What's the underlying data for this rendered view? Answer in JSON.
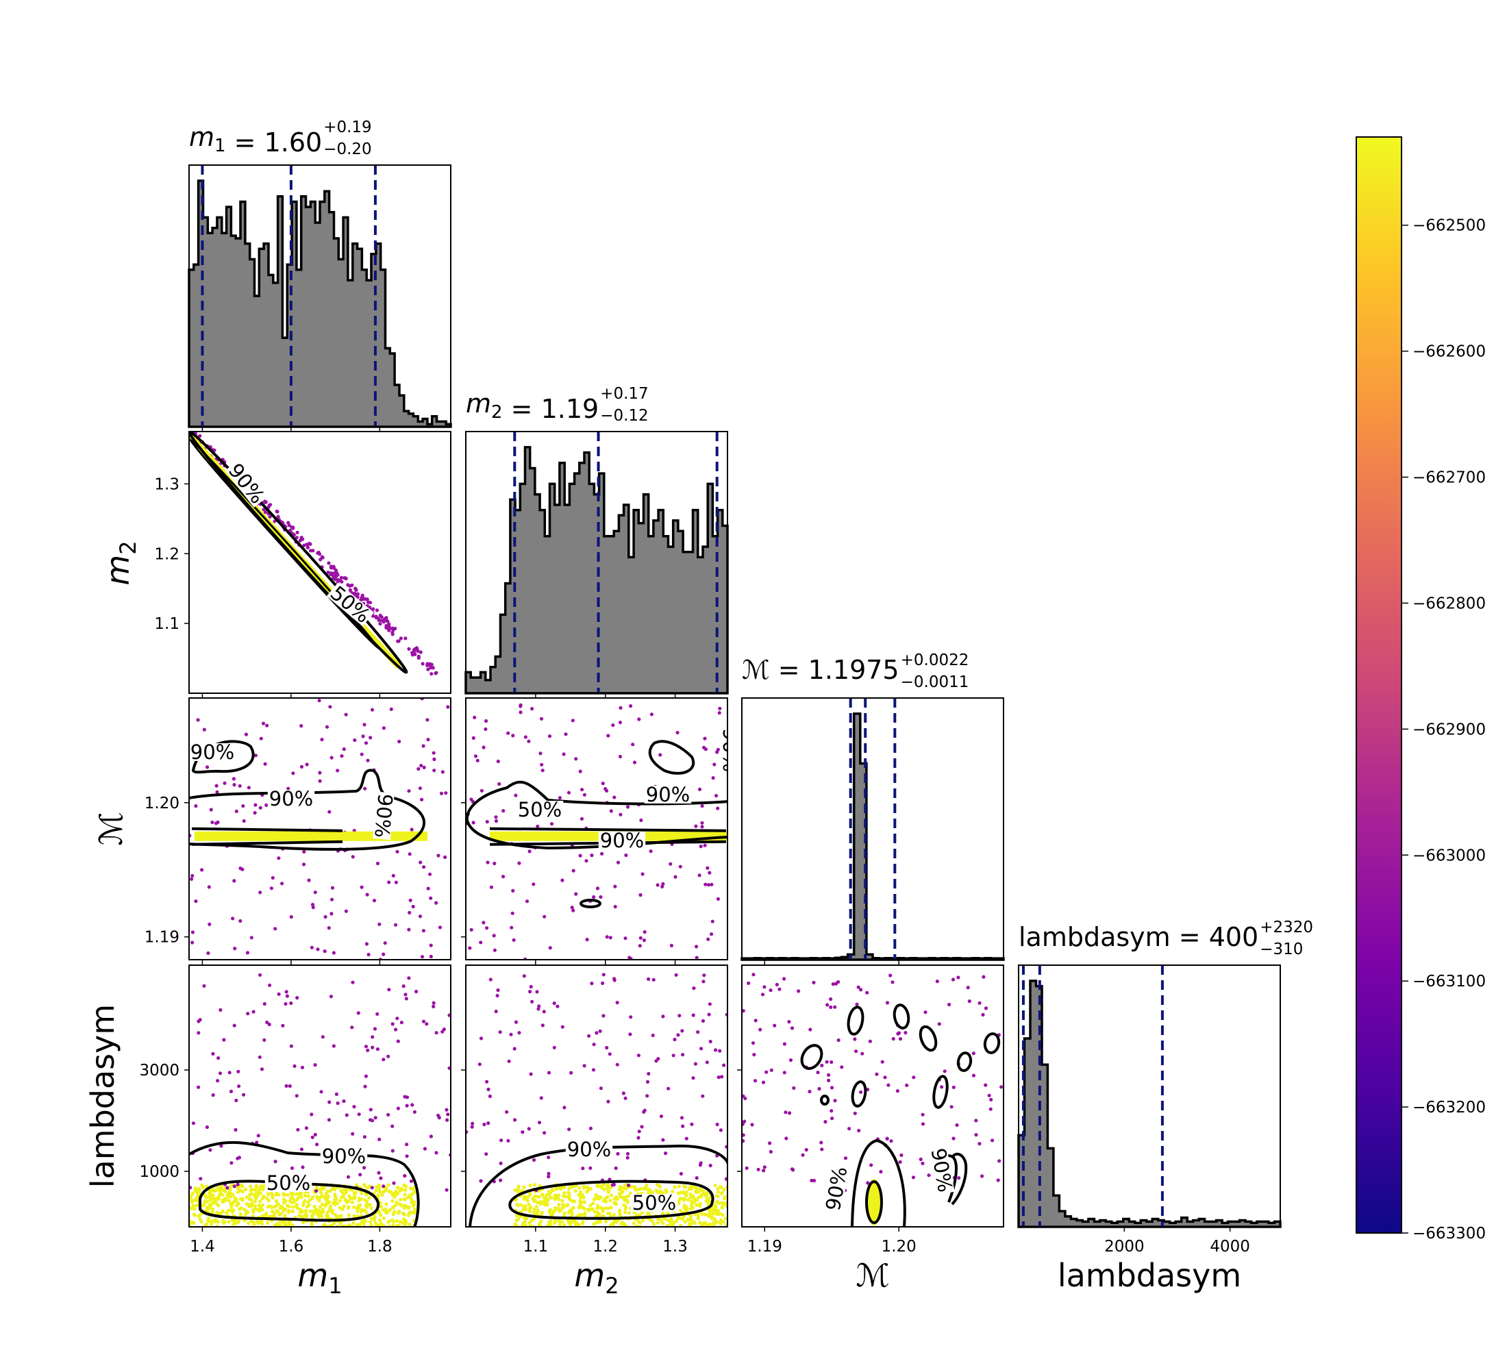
{
  "chart_data": {
    "type": "corner",
    "parameters": [
      {
        "key": "m1",
        "label": "m",
        "sub": "1",
        "title_value": "1.60",
        "plus": "+0.19",
        "minus": "−0.20",
        "range": [
          1.37,
          1.96
        ],
        "ticks": [
          1.4,
          1.6,
          1.8
        ],
        "tick_labels": [
          "1.4",
          "1.6",
          "1.8"
        ],
        "quantiles": [
          1.4,
          1.6,
          1.79
        ]
      },
      {
        "key": "m2",
        "label": "m",
        "sub": "2",
        "title_value": "1.19",
        "plus": "+0.17",
        "minus": "−0.12",
        "range": [
          1.0,
          1.375
        ],
        "ticks": [
          1.1,
          1.2,
          1.3
        ],
        "tick_labels": [
          "1.1",
          "1.2",
          "1.3"
        ],
        "quantiles": [
          1.07,
          1.19,
          1.36
        ]
      },
      {
        "key": "mc",
        "label": "ℳ",
        "sub": "",
        "title_value": "1.1975",
        "plus": "+0.0022",
        "minus": "−0.0011",
        "range": [
          1.1883,
          1.2078
        ],
        "ticks": [
          1.19,
          1.2
        ],
        "tick_labels": [
          "1.19",
          "1.20"
        ],
        "quantiles": [
          1.1964,
          1.1975,
          1.1997
        ]
      },
      {
        "key": "lambdasym",
        "label": "lambdasym",
        "sub": "",
        "title_value": "400",
        "plus": "+2320",
        "minus": "−310",
        "range": [
          0,
          4950
        ],
        "ticks": [
          2000,
          4000
        ],
        "tick_labels": [
          "2000",
          "4000"
        ],
        "y_ticks": [
          1000,
          3000
        ],
        "y_tick_labels": [
          "1000",
          "3000"
        ],
        "quantiles": [
          90,
          400,
          2720
        ]
      }
    ],
    "histograms": {
      "m1": [
        0.6,
        0.62,
        0.94,
        0.8,
        0.74,
        0.76,
        0.8,
        0.74,
        0.84,
        0.73,
        0.72,
        0.86,
        0.7,
        0.64,
        0.5,
        0.68,
        0.7,
        0.58,
        0.55,
        0.88,
        0.34,
        0.62,
        0.86,
        0.6,
        0.88,
        0.84,
        0.86,
        0.78,
        0.86,
        0.9,
        0.82,
        0.72,
        0.64,
        0.8,
        0.56,
        0.7,
        0.68,
        0.6,
        0.56,
        0.66,
        0.7,
        0.6,
        0.3,
        0.28,
        0.16,
        0.12,
        0.06,
        0.05,
        0.04,
        0.02,
        0.03,
        0.01,
        0.04,
        0.02,
        0.02,
        0.01
      ],
      "m2": [
        0.08,
        0.06,
        0.06,
        0.08,
        0.05,
        0.1,
        0.14,
        0.3,
        0.42,
        0.74,
        0.7,
        0.8,
        0.94,
        0.86,
        0.76,
        0.7,
        0.6,
        0.8,
        0.72,
        0.88,
        0.72,
        0.8,
        0.84,
        0.88,
        0.92,
        0.8,
        0.76,
        0.84,
        0.6,
        0.6,
        0.62,
        0.68,
        0.72,
        0.52,
        0.7,
        0.65,
        0.76,
        0.6,
        0.66,
        0.7,
        0.6,
        0.56,
        0.66,
        0.62,
        0.54,
        0.54,
        0.7,
        0.52,
        0.56,
        0.8,
        0.6,
        0.7,
        0.64
      ],
      "mc": [
        0.005,
        0.005,
        0.006,
        0.005,
        0.006,
        0.005,
        0.006,
        0.005,
        0.006,
        0.005,
        0.005,
        0.006,
        0.005,
        0.006,
        0.005,
        0.007,
        0.01,
        0.02,
        0.94,
        0.75,
        0.02,
        0.006,
        0.005,
        0.006,
        0.005,
        0.006,
        0.005,
        0.006,
        0.005,
        0.005,
        0.006,
        0.005,
        0.006,
        0.005,
        0.006,
        0.005,
        0.005,
        0.006,
        0.005,
        0.006,
        0.005,
        0.005
      ],
      "lambdasym": [
        0.35,
        0.72,
        0.94,
        0.92,
        0.62,
        0.3,
        0.12,
        0.06,
        0.04,
        0.03,
        0.025,
        0.02,
        0.03,
        0.02,
        0.025,
        0.02,
        0.015,
        0.02,
        0.03,
        0.02,
        0.015,
        0.025,
        0.02,
        0.03,
        0.025,
        0.02,
        0.015,
        0.02,
        0.035,
        0.02,
        0.025,
        0.03,
        0.02,
        0.02,
        0.025,
        0.015,
        0.02,
        0.02,
        0.025,
        0.02,
        0.015,
        0.02,
        0.02,
        0.015,
        0.02
      ]
    },
    "contour_labels": [
      "50%",
      "90%"
    ],
    "colorbar": {
      "colormap": "plasma",
      "range": [
        -663300,
        -662430
      ],
      "ticks": [
        -662500,
        -662600,
        -662700,
        -662800,
        -662900,
        -663000,
        -663100,
        -663200,
        -663300
      ],
      "tick_labels": [
        "−662500",
        "−662600",
        "−662700",
        "−662800",
        "−662900",
        "−663000",
        "−663100",
        "−663200",
        "−663300"
      ]
    },
    "quantile_line_color": "#0c1577",
    "hist_fill": "#808080",
    "title": "",
    "xlabel": "",
    "ylabel": "",
    "grid": false,
    "legend": "none"
  }
}
